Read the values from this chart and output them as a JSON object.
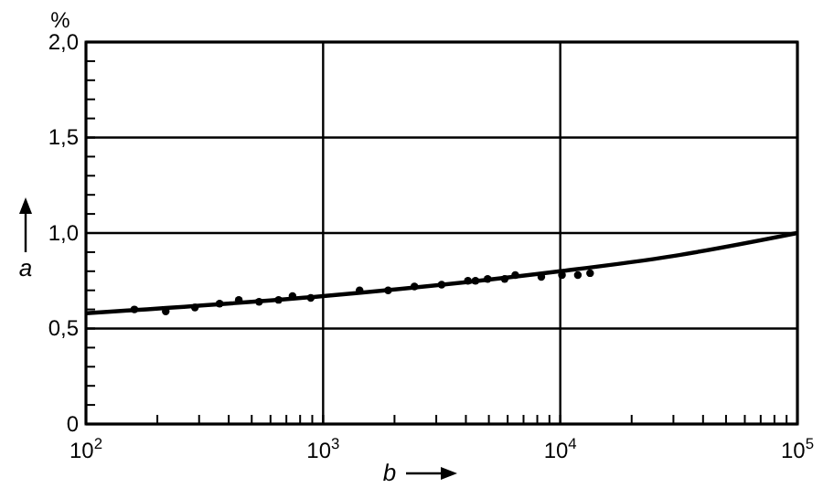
{
  "chart_data": {
    "type": "scatter",
    "xlabel": "b",
    "ylabel": "a",
    "title": "%",
    "log": "x",
    "grid": true,
    "marker": "circle",
    "xlim": [
      100,
      100000
    ],
    "ylim": [
      0,
      2.0
    ],
    "xticks": [
      {
        "value": 100,
        "label": "10$^{2}$"
      },
      {
        "value": 200,
        "label": null
      },
      {
        "value": 300,
        "label": null
      },
      {
        "value": 400,
        "label": null
      },
      {
        "value": 500,
        "label": null
      },
      {
        "value": 600,
        "label": null
      },
      {
        "value": 700,
        "label": null
      },
      {
        "value": 800,
        "label": null
      },
      {
        "value": 900,
        "label": null
      },
      {
        "value": 1000,
        "label": "10$^{3}$"
      },
      {
        "value": 2000,
        "label": null
      },
      {
        "value": 3000,
        "label": null
      },
      {
        "value": 4000,
        "label": null
      },
      {
        "value": 5000,
        "label": null
      },
      {
        "value": 6000,
        "label": null
      },
      {
        "value": 7000,
        "label": null
      },
      {
        "value": 8000,
        "label": null
      },
      {
        "value": 9000,
        "label": null
      },
      {
        "value": 10000,
        "label": "10$^{4}$"
      },
      {
        "value": 20000,
        "label": null
      },
      {
        "value": 30000,
        "label": null
      },
      {
        "value": 40000,
        "label": null
      },
      {
        "value": 50000,
        "label": null
      },
      {
        "value": 60000,
        "label": null
      },
      {
        "value": 70000,
        "label": null
      },
      {
        "value": 80000,
        "label": null
      },
      {
        "value": 90000,
        "label": null
      },
      {
        "value": 100000,
        "label": "10$^{5}$"
      }
    ],
    "yticks": [
      0,
      {
        "value": 0.1,
        "label": null
      },
      {
        "value": 0.2,
        "label": null
      },
      {
        "value": 0.3,
        "label": null
      },
      {
        "value": 0.4,
        "label": null
      },
      {
        "value": 0.5,
        "label": "0,5"
      },
      {
        "value": 0.6,
        "label": null
      },
      {
        "value": 0.7,
        "label": null
      },
      {
        "value": 0.8,
        "label": null
      },
      {
        "value": 0.9,
        "label": null
      },
      {
        "value": 1.0,
        "label": "1,0"
      },
      {
        "value": 1.1,
        "label": null
      },
      {
        "value": 1.2,
        "label": null
      },
      {
        "value": 1.3,
        "label": null
      },
      {
        "value": 1.4,
        "label": null
      },
      {
        "value": 1.5,
        "label": "1,5"
      },
      {
        "value": 1.6,
        "label": null
      },
      {
        "value": 1.7,
        "label": null
      },
      {
        "value": 1.8,
        "label": null
      },
      {
        "value": 1.9,
        "label": null
      },
      {
        "value": 2.0,
        "label": "2,0"
      }
    ],
    "series": [
      {
        "color": "#000000",
        "x": [
          160,
          217,
          288,
          366,
          441,
          537,
          649,
          743,
          887,
          1425,
          1880,
          2427,
          3160,
          4080,
          4390,
          4940,
          5830,
          6460,
          8320,
          10170,
          11860,
          13360
        ],
        "values": [
          0.6,
          0.59,
          0.61,
          0.63,
          0.65,
          0.64,
          0.65,
          0.67,
          0.66,
          0.7,
          0.7,
          0.72,
          0.73,
          0.75,
          0.75,
          0.76,
          0.76,
          0.78,
          0.77,
          0.78,
          0.78,
          0.79
        ]
      },
      {
        "type": "line",
        "color": "#000000",
        "marker": "none",
        "x": [
          100,
          1000,
          10000,
          30000,
          100000
        ],
        "values": [
          0.58,
          0.67,
          0.8,
          0.88,
          1.0
        ]
      }
    ]
  }
}
